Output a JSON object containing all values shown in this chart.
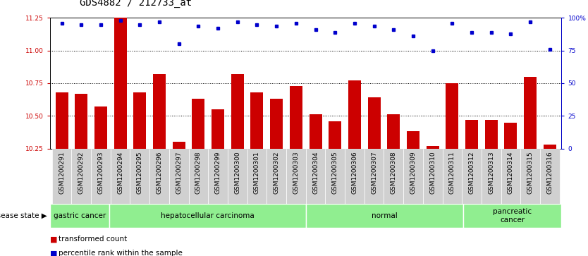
{
  "title": "GDS4882 / 212733_at",
  "samples": [
    "GSM1200291",
    "GSM1200292",
    "GSM1200293",
    "GSM1200294",
    "GSM1200295",
    "GSM1200296",
    "GSM1200297",
    "GSM1200298",
    "GSM1200299",
    "GSM1200300",
    "GSM1200301",
    "GSM1200302",
    "GSM1200303",
    "GSM1200304",
    "GSM1200305",
    "GSM1200306",
    "GSM1200307",
    "GSM1200308",
    "GSM1200309",
    "GSM1200310",
    "GSM1200311",
    "GSM1200312",
    "GSM1200313",
    "GSM1200314",
    "GSM1200315",
    "GSM1200316"
  ],
  "bar_values": [
    10.68,
    10.67,
    10.57,
    11.25,
    10.68,
    10.82,
    10.3,
    10.63,
    10.55,
    10.82,
    10.68,
    10.63,
    10.73,
    10.51,
    10.46,
    10.77,
    10.64,
    10.51,
    10.38,
    10.27,
    10.75,
    10.47,
    10.47,
    10.45,
    10.8,
    10.28
  ],
  "percentile_values": [
    96,
    95,
    95,
    98,
    95,
    97,
    80,
    94,
    92,
    97,
    95,
    94,
    96,
    91,
    89,
    96,
    94,
    91,
    86,
    75,
    96,
    89,
    89,
    88,
    97,
    76
  ],
  "bar_color": "#cc0000",
  "percentile_color": "#0000cc",
  "ylim_left": [
    10.25,
    11.25
  ],
  "ylim_right": [
    0,
    100
  ],
  "yticks_left": [
    10.25,
    10.5,
    10.75,
    11.0,
    11.25
  ],
  "yticks_right": [
    0,
    25,
    50,
    75,
    100
  ],
  "group_boundaries": [
    [
      0,
      3,
      "gastric cancer"
    ],
    [
      3,
      13,
      "hepatocellular carcinoma"
    ],
    [
      13,
      21,
      "normal"
    ],
    [
      21,
      26,
      "pancreatic\ncancer"
    ]
  ],
  "legend_bar_label": "transformed count",
  "legend_pct_label": "percentile rank within the sample",
  "disease_state_label": "disease state",
  "background_color": "#ffffff",
  "bar_color_left_axis": "#cc0000",
  "axis_label_color_right": "#0000cc",
  "green_color": "#90ee90",
  "title_fontsize": 10,
  "tick_fontsize": 6.5,
  "label_fontsize": 7.5
}
